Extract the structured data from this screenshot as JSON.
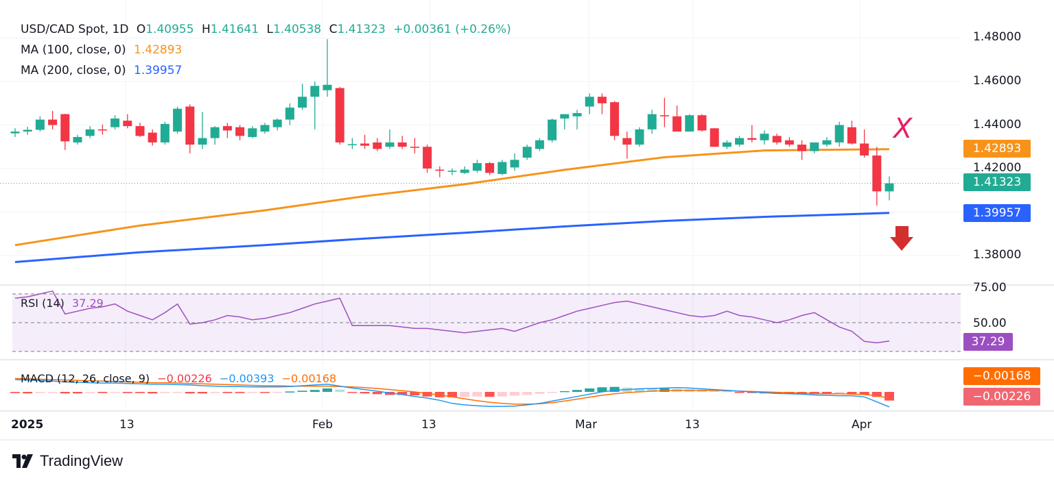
{
  "header": {
    "symbol": "USD/CAD Spot, 1D",
    "open_label": "O",
    "open": "1.40955",
    "high_label": "H",
    "high": "1.41641",
    "low_label": "L",
    "low": "1.40538",
    "close_label": "C",
    "close": "1.41323",
    "change": "+0.00361 (+0.26%)",
    "ma100_label": "MA (100, close, 0)",
    "ma100_value": "1.42893",
    "ma200_label": "MA (200, close, 0)",
    "ma200_value": "1.39957"
  },
  "colors": {
    "up": "#22ab94",
    "down": "#f23645",
    "ma100": "#f7931a",
    "ma200": "#2962ff",
    "rsi": "#9c4fc1",
    "macd_line": "#2196f3",
    "signal": "#ff6d00"
  },
  "price_axis": {
    "ticks": [
      "1.48000",
      "1.46000",
      "1.44000",
      "1.42000",
      "1.38000"
    ]
  },
  "price_tags": {
    "ma100": "1.42893",
    "last": "1.41323",
    "ma200": "1.39957"
  },
  "rsi": {
    "label": "RSI (14)",
    "value": "37.29",
    "axis_ticks": [
      "75.00",
      "50.00"
    ],
    "tag": "37.29"
  },
  "macd": {
    "label": "MACD (12, 26, close, 9)",
    "hist": "−0.00226",
    "macd": "−0.00393",
    "signal": "−0.00168",
    "tag_signal": "−0.00168",
    "tag_hist": "−0.00226"
  },
  "date_axis": {
    "labels": [
      "2025",
      "13",
      "Feb",
      "13",
      "Mar",
      "13",
      "Apr"
    ]
  },
  "annotation": {
    "x_mark": "X"
  },
  "brand": "TradingView",
  "chart_data": {
    "type": "candlestick",
    "title": "USD/CAD Spot, 1D",
    "ylim": [
      1.368,
      1.486
    ],
    "candles": [
      [
        1.4362,
        1.4385,
        1.4345,
        1.437
      ],
      [
        1.437,
        1.4392,
        1.4355,
        1.4378
      ],
      [
        1.4378,
        1.444,
        1.437,
        1.4425
      ],
      [
        1.4425,
        1.4465,
        1.438,
        1.44
      ],
      [
        1.445,
        1.4452,
        1.4285,
        1.4325
      ],
      [
        1.432,
        1.4355,
        1.431,
        1.4345
      ],
      [
        1.435,
        1.4395,
        1.434,
        1.438
      ],
      [
        1.438,
        1.4402,
        1.4355,
        1.4375
      ],
      [
        1.439,
        1.4445,
        1.438,
        1.443
      ],
      [
        1.442,
        1.445,
        1.4385,
        1.4395
      ],
      [
        1.4395,
        1.441,
        1.4345,
        1.435
      ],
      [
        1.4365,
        1.438,
        1.4305,
        1.432
      ],
      [
        1.432,
        1.4415,
        1.431,
        1.4405
      ],
      [
        1.437,
        1.4485,
        1.436,
        1.4475
      ],
      [
        1.4485,
        1.4495,
        1.427,
        1.431
      ],
      [
        1.431,
        1.446,
        1.429,
        1.434
      ],
      [
        1.434,
        1.4395,
        1.431,
        1.439
      ],
      [
        1.4395,
        1.441,
        1.434,
        1.4375
      ],
      [
        1.439,
        1.44,
        1.433,
        1.435
      ],
      [
        1.4345,
        1.4395,
        1.434,
        1.4385
      ],
      [
        1.437,
        1.441,
        1.436,
        1.44
      ],
      [
        1.439,
        1.443,
        1.4375,
        1.4425
      ],
      [
        1.4425,
        1.45,
        1.44,
        1.448
      ],
      [
        1.448,
        1.459,
        1.447,
        1.453
      ],
      [
        1.453,
        1.46,
        1.438,
        1.458
      ],
      [
        1.456,
        1.4795,
        1.453,
        1.4585
      ],
      [
        1.457,
        1.4575,
        1.431,
        1.432
      ],
      [
        1.431,
        1.434,
        1.429,
        1.4312
      ],
      [
        1.4315,
        1.4355,
        1.429,
        1.4305
      ],
      [
        1.432,
        1.434,
        1.428,
        1.429
      ],
      [
        1.43,
        1.438,
        1.429,
        1.432
      ],
      [
        1.432,
        1.435,
        1.429,
        1.43
      ],
      [
        1.43,
        1.434,
        1.427,
        1.4295
      ],
      [
        1.43,
        1.431,
        1.418,
        1.42
      ],
      [
        1.4195,
        1.421,
        1.416,
        1.419
      ],
      [
        1.4185,
        1.42,
        1.417,
        1.419
      ],
      [
        1.418,
        1.421,
        1.4175,
        1.4195
      ],
      [
        1.419,
        1.424,
        1.418,
        1.4225
      ],
      [
        1.4225,
        1.423,
        1.417,
        1.418
      ],
      [
        1.4175,
        1.424,
        1.417,
        1.423
      ],
      [
        1.4205,
        1.427,
        1.419,
        1.424
      ],
      [
        1.425,
        1.431,
        1.424,
        1.43
      ],
      [
        1.429,
        1.434,
        1.428,
        1.433
      ],
      [
        1.433,
        1.443,
        1.432,
        1.4425
      ],
      [
        1.443,
        1.445,
        1.438,
        1.445
      ],
      [
        1.444,
        1.447,
        1.438,
        1.4455
      ],
      [
        1.4485,
        1.4545,
        1.445,
        1.453
      ],
      [
        1.453,
        1.4545,
        1.445,
        1.45
      ],
      [
        1.4505,
        1.451,
        1.433,
        1.435
      ],
      [
        1.434,
        1.437,
        1.4245,
        1.431
      ],
      [
        1.431,
        1.439,
        1.43,
        1.438
      ],
      [
        1.438,
        1.447,
        1.436,
        1.445
      ],
      [
        1.4445,
        1.4525,
        1.439,
        1.444
      ],
      [
        1.444,
        1.449,
        1.437,
        1.437
      ],
      [
        1.437,
        1.445,
        1.437,
        1.4445
      ],
      [
        1.4445,
        1.445,
        1.437,
        1.4375
      ],
      [
        1.4385,
        1.4385,
        1.43,
        1.43
      ],
      [
        1.43,
        1.433,
        1.429,
        1.432
      ],
      [
        1.431,
        1.435,
        1.43,
        1.434
      ],
      [
        1.434,
        1.44,
        1.432,
        1.4332
      ],
      [
        1.433,
        1.4375,
        1.431,
        1.436
      ],
      [
        1.435,
        1.436,
        1.431,
        1.432
      ],
      [
        1.433,
        1.4345,
        1.43,
        1.431
      ],
      [
        1.431,
        1.433,
        1.424,
        1.428
      ],
      [
        1.428,
        1.431,
        1.427,
        1.432
      ],
      [
        1.431,
        1.4345,
        1.43,
        1.433
      ],
      [
        1.432,
        1.4415,
        1.43,
        1.44
      ],
      [
        1.439,
        1.442,
        1.431,
        1.4315
      ],
      [
        1.4315,
        1.438,
        1.425,
        1.426
      ],
      [
        1.426,
        1.43,
        1.403,
        1.4095
      ],
      [
        1.4095,
        1.4164,
        1.4054,
        1.4132
      ]
    ],
    "ma100_points": [
      [
        0,
        1.3848
      ],
      [
        10,
        1.3938
      ],
      [
        20,
        1.4008
      ],
      [
        28,
        1.4073
      ],
      [
        36,
        1.4128
      ],
      [
        44,
        1.4194
      ],
      [
        52,
        1.4252
      ],
      [
        60,
        1.4283
      ],
      [
        70,
        1.4289
      ]
    ],
    "ma200_points": [
      [
        0,
        1.377
      ],
      [
        10,
        1.3815
      ],
      [
        20,
        1.3848
      ],
      [
        28,
        1.3878
      ],
      [
        36,
        1.3905
      ],
      [
        44,
        1.3934
      ],
      [
        52,
        1.3959
      ],
      [
        60,
        1.3978
      ],
      [
        70,
        1.3996
      ]
    ],
    "rsi_series": [
      67,
      68,
      70,
      72,
      56,
      58,
      60,
      61,
      63,
      58,
      55,
      52,
      57,
      63,
      49,
      50,
      52,
      55,
      54,
      52,
      53,
      55,
      57,
      60,
      63,
      65,
      67,
      48,
      48,
      48,
      48,
      47,
      46,
      46,
      45,
      44,
      43,
      44,
      45,
      46,
      44,
      47,
      50,
      52,
      55,
      58,
      60,
      62,
      64,
      65,
      63,
      61,
      59,
      57,
      55,
      54,
      55,
      58,
      55,
      54,
      52,
      50,
      52,
      55,
      57,
      52,
      47,
      44,
      37,
      36,
      37.29
    ],
    "macd_hist": [
      -0.0003,
      -0.0004,
      -0.0003,
      -0.0002,
      -0.0004,
      -0.0004,
      -0.0003,
      -0.0003,
      -0.0002,
      -0.0003,
      -0.0003,
      -0.0004,
      -0.0003,
      -0.0002,
      -0.0004,
      -0.0004,
      -0.0003,
      -0.0003,
      -0.0003,
      -0.0002,
      -0.0002,
      -0.0001,
      0.0001,
      0.0003,
      0.0005,
      0.0009,
      0.0006,
      -0.0002,
      -0.0004,
      -0.0006,
      -0.0008,
      -0.0008,
      -0.0009,
      -0.0012,
      -0.0014,
      -0.0014,
      -0.0013,
      -0.0012,
      -0.0013,
      -0.0012,
      -0.001,
      -0.0008,
      -0.0005,
      -0.0002,
      0.0002,
      0.0005,
      0.0009,
      0.0012,
      0.0013,
      0.0011,
      0.0009,
      0.0008,
      0.0009,
      0.0008,
      0.0007,
      0.0006,
      0.0005,
      0.0002,
      -0.0001,
      -0.0003,
      -0.0004,
      -0.0005,
      -0.0005,
      -0.0006,
      -0.0006,
      -0.0006,
      -0.0005,
      -0.0005,
      -0.0008,
      -0.0013,
      -0.00226
    ],
    "macd_line": [
      0.0032,
      0.0031,
      0.003,
      0.0028,
      0.0026,
      0.0025,
      0.0024,
      0.0023,
      0.0023,
      0.0022,
      0.0021,
      0.002,
      0.002,
      0.0019,
      0.0018,
      0.0016,
      0.0015,
      0.0014,
      0.0014,
      0.0013,
      0.0013,
      0.0013,
      0.0014,
      0.0016,
      0.0018,
      0.002,
      0.0015,
      0.001,
      0.0006,
      0.0002,
      -0.0003,
      -0.0007,
      -0.0012,
      -0.0016,
      -0.0022,
      -0.003,
      -0.0034,
      -0.0036,
      -0.0038,
      -0.0038,
      -0.0037,
      -0.0034,
      -0.003,
      -0.0024,
      -0.0018,
      -0.0012,
      -0.0006,
      0.0,
      0.0004,
      0.0006,
      0.0008,
      0.0009,
      0.001,
      0.0011,
      0.001,
      0.0008,
      0.0006,
      0.0004,
      0.0002,
      0.0,
      -0.0002,
      -0.0004,
      -0.0005,
      -0.0006,
      -0.0008,
      -0.0009,
      -0.001,
      -0.001,
      -0.0013,
      -0.0026,
      -0.00393
    ],
    "signal_line": [
      0.0035,
      0.0034,
      0.0033,
      0.0032,
      0.0031,
      0.003,
      0.0029,
      0.0028,
      0.0027,
      0.0026,
      0.0025,
      0.0024,
      0.0024,
      0.0023,
      0.0022,
      0.0021,
      0.002,
      0.0019,
      0.0018,
      0.0017,
      0.0016,
      0.0016,
      0.0015,
      0.0015,
      0.0015,
      0.0015,
      0.0014,
      0.0013,
      0.0011,
      0.0009,
      0.0006,
      0.0003,
      0.0,
      -0.0004,
      -0.0008,
      -0.0013,
      -0.0018,
      -0.0023,
      -0.0027,
      -0.003,
      -0.0032,
      -0.0032,
      -0.0031,
      -0.0028,
      -0.0024,
      -0.0019,
      -0.0014,
      -0.0009,
      -0.0005,
      -0.0002,
      0.0,
      0.0002,
      0.0003,
      0.0004,
      0.0004,
      0.0004,
      0.0004,
      0.0003,
      0.0002,
      0.0001,
      0.0,
      -0.0001,
      -0.0002,
      -0.0003,
      -0.0004,
      -0.0005,
      -0.0005,
      -0.0006,
      -0.0007,
      -0.001,
      -0.00168
    ]
  }
}
